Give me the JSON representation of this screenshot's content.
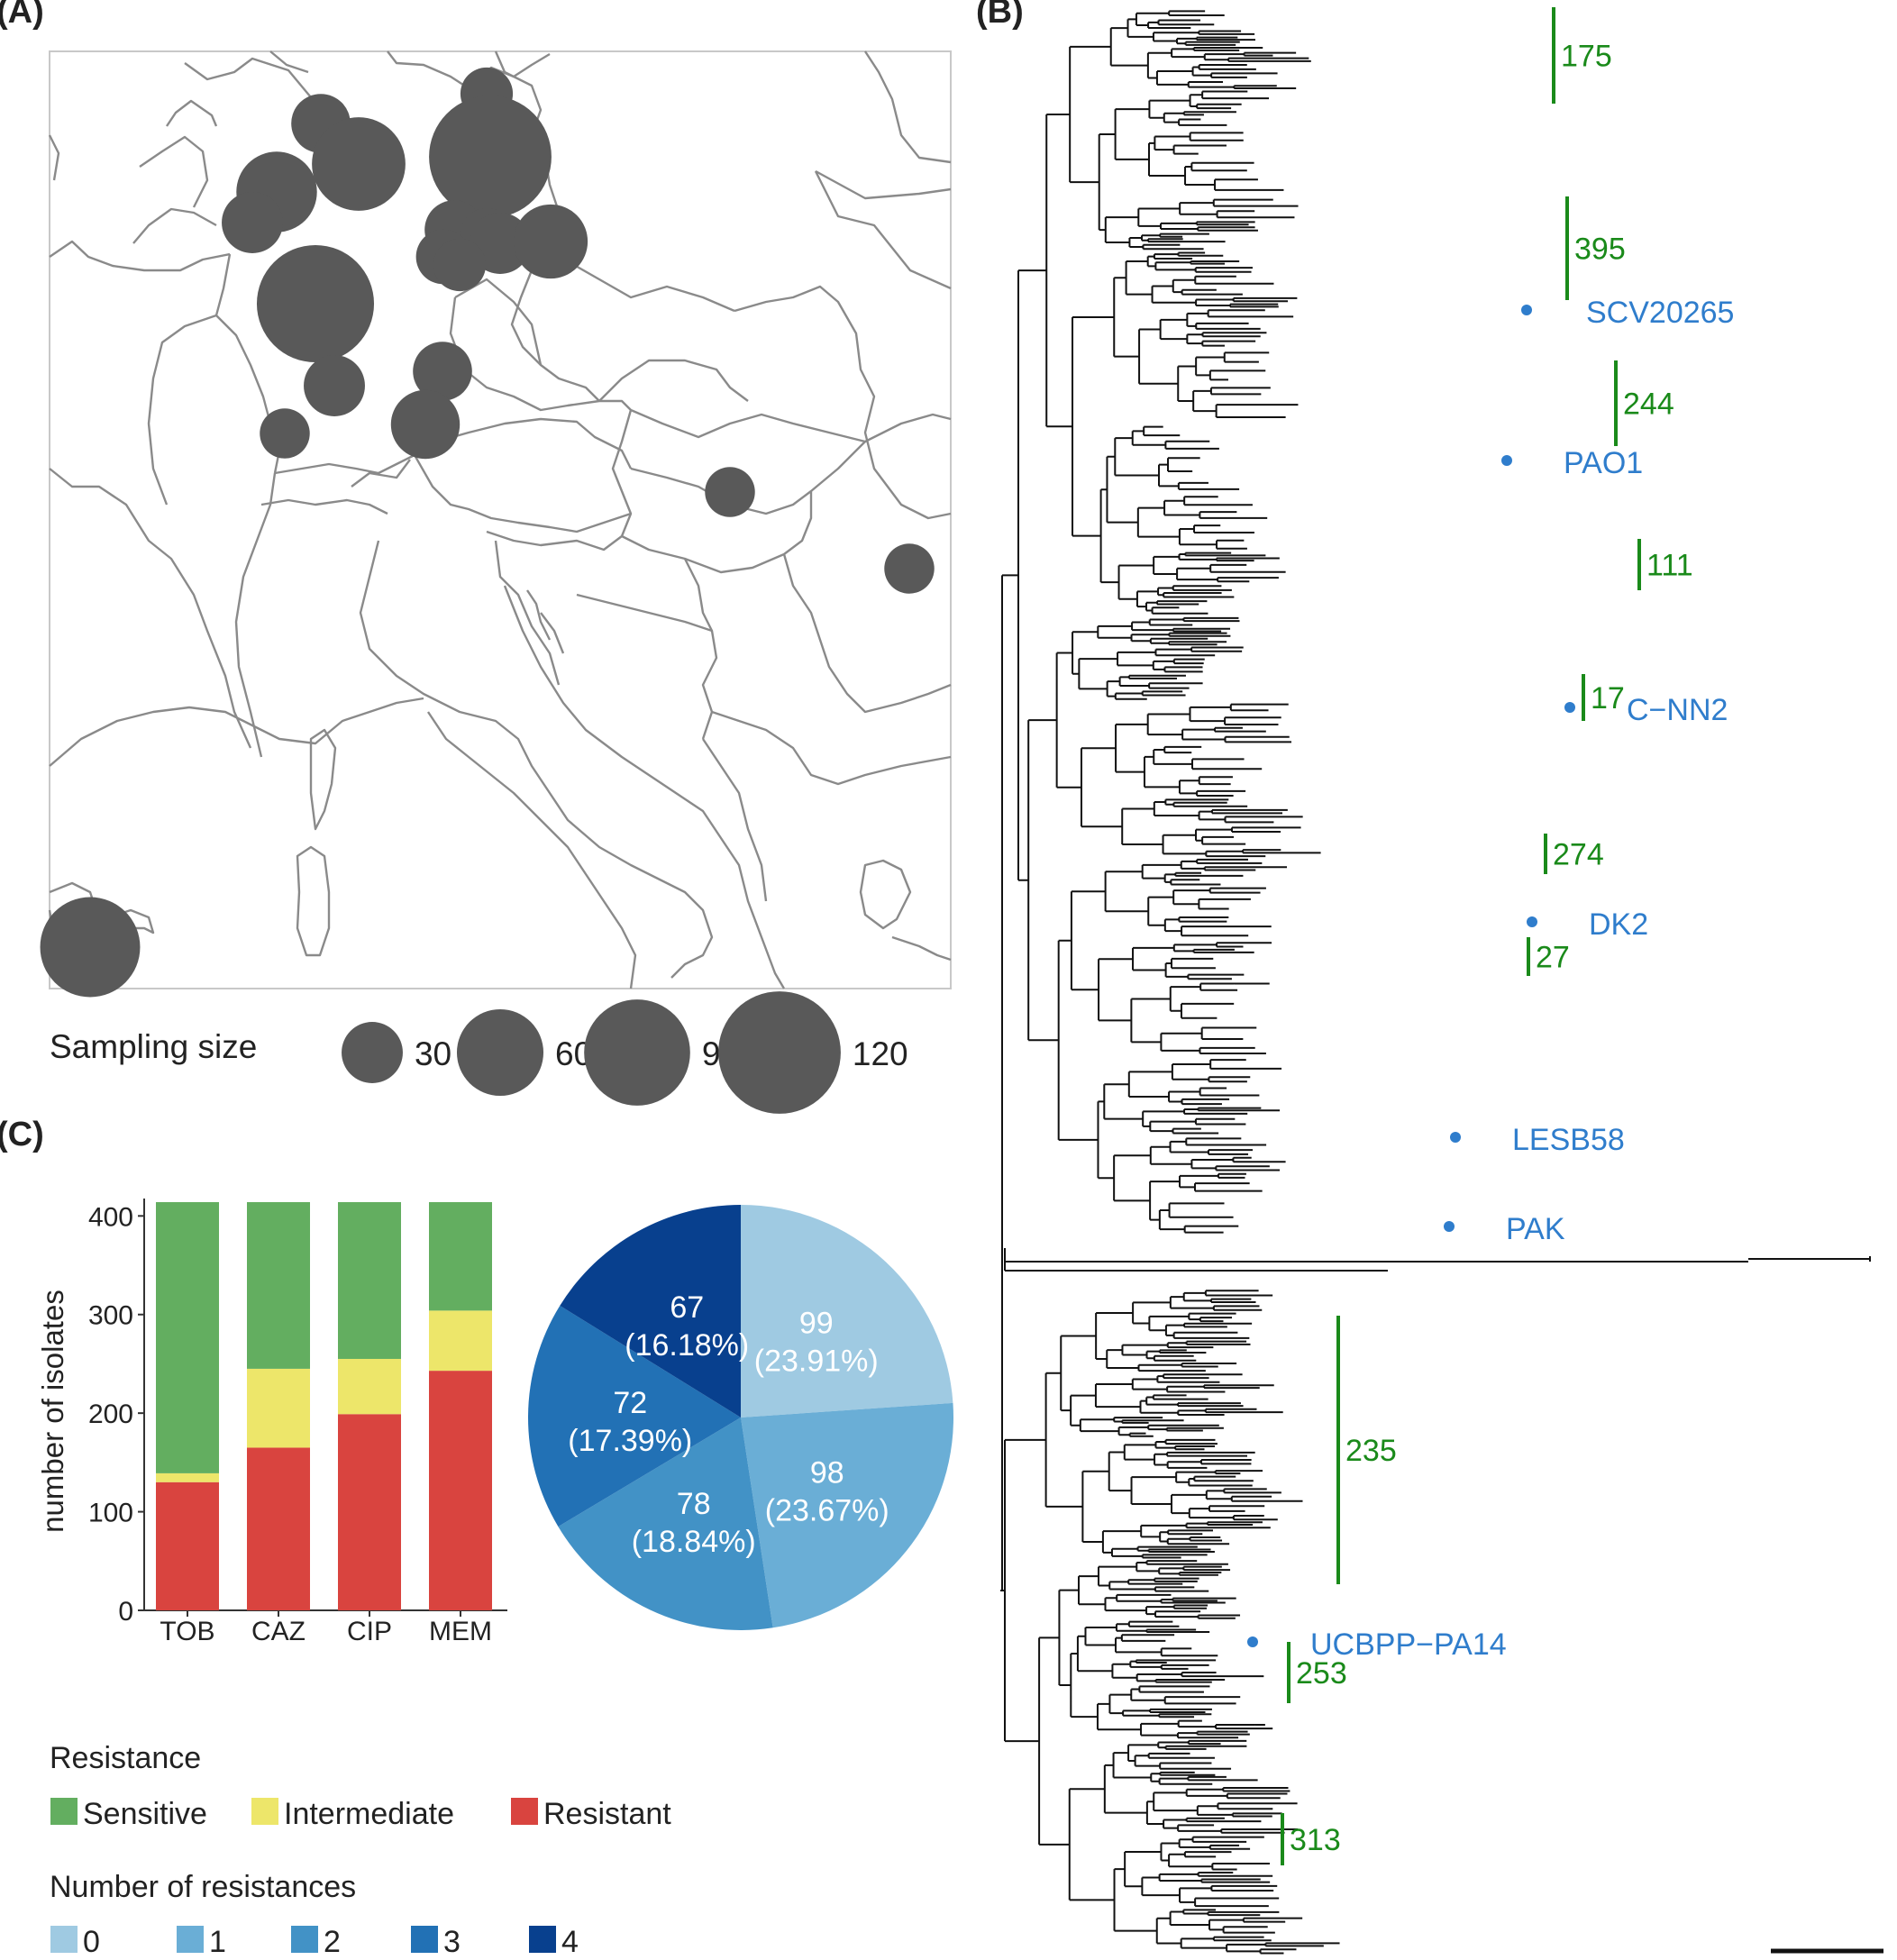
{
  "panels": {
    "a": "(A)",
    "b": "(B)",
    "c": "(C)"
  },
  "colors": {
    "sensitive": "#63ae60",
    "intermediate": "#ede66a",
    "resistant": "#d9443f",
    "res0": "#9fcae2",
    "res1": "#6aaed6",
    "res2": "#4292c6",
    "res3": "#2271b5",
    "res4": "#08408e",
    "clade": "#1a8a1a",
    "reference": "#2f7dcc",
    "map_line": "#8a8a8a",
    "bubble": "#595959"
  },
  "map": {
    "sampling_title": "Sampling size",
    "sizes": [
      30,
      60,
      90,
      120
    ],
    "sites": [
      {
        "size": 22
      },
      {
        "size": 28
      },
      {
        "size": 70
      },
      {
        "size": 120
      },
      {
        "size": 52
      },
      {
        "size": 30
      },
      {
        "size": 28
      },
      {
        "size": 22
      },
      {
        "size": 30
      },
      {
        "size": 24
      },
      {
        "size": 22
      },
      {
        "size": 44
      },
      {
        "size": 110
      },
      {
        "size": 28
      },
      {
        "size": 30
      },
      {
        "size": 38
      },
      {
        "size": 20
      },
      {
        "size": 20
      },
      {
        "size": 20
      },
      {
        "size": 80
      }
    ]
  },
  "tree": {
    "clades": [
      "175",
      "395",
      "244",
      "111",
      "17",
      "274",
      "27",
      "235",
      "253",
      "313"
    ],
    "references": [
      "SCV20265",
      "PAO1",
      "C−NN2",
      "DK2",
      "LESB58",
      "PAK",
      "UCBPP−PA14"
    ]
  },
  "chart_data": [
    {
      "type": "bar",
      "stacked": true,
      "categories": [
        "TOB",
        "CAZ",
        "CIP",
        "MEM"
      ],
      "series": [
        {
          "name": "Resistant",
          "values": [
            130,
            165,
            199,
            243
          ]
        },
        {
          "name": "Intermediate",
          "values": [
            9,
            80,
            56,
            61
          ]
        },
        {
          "name": "Sensitive",
          "values": [
            275,
            169,
            159,
            110
          ]
        }
      ],
      "ylabel": "number of isolates",
      "yticks": [
        0,
        100,
        200,
        300,
        400
      ],
      "ylim": [
        0,
        414
      ],
      "legend": {
        "title": "Resistance",
        "position": "bottom"
      }
    },
    {
      "type": "pie",
      "categories": [
        "0",
        "1",
        "2",
        "3",
        "4"
      ],
      "values": [
        99,
        98,
        78,
        72,
        67
      ],
      "labels": [
        "(23.91%)",
        "(23.67%)",
        "(18.84%)",
        "(17.39%)",
        "(16.18%)"
      ],
      "legend": {
        "title": "Number of resistances",
        "position": "bottom"
      }
    }
  ]
}
